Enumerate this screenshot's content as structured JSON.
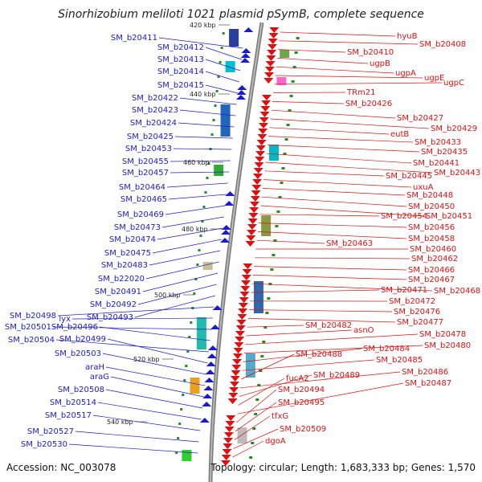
{
  "title": "Sinorhizobium meliloti 1021 plasmid pSymB, complete sequence",
  "footer": {
    "accession": "Accession: NC_003078",
    "topology": "Topology: circular; Length: 1,683,333 bp; Genes: 1,570"
  },
  "ticks": [
    "420 kbp",
    "440 kbp",
    "460 kbp",
    "480 kbp",
    "500 kbp",
    "520 kbp",
    "540 kbp"
  ],
  "colors": {
    "forward_genes": "#e01010",
    "reverse_genes": "#1a1ad0",
    "backbone": "#888888"
  },
  "left_labels": [
    "SM_b20411",
    "SM_b20412",
    "SM_b20413",
    "SM_b20414",
    "SM_b20415",
    "SM_b20422",
    "SM_b20423",
    "SM_b20424",
    "SM_b20425",
    "SM_b20453",
    "SM_b20455",
    "SM_b20457",
    "SM_b20464",
    "SM_b20465",
    "SM_b20469",
    "SM_b20473",
    "SM_b20474",
    "SM_b20475",
    "SM_b20483",
    "SM_b22020",
    "SM_b20491",
    "SM_b20492",
    "SM_b20493",
    "SM_b20498",
    "lyx",
    "SM_b20501",
    "SM_b20496",
    "SM_b20504",
    "SM_b20499",
    "SM_b20503",
    "araH",
    "araG",
    "SM_b20508",
    "SM_b20514",
    "SM_b20517",
    "SM_b20527",
    "SM_b20530"
  ],
  "right_labels": [
    "hyuB",
    "SM_b20408",
    "SM_b20410",
    "ugpB",
    "ugpA",
    "ugpE",
    "ugpC",
    "TRm21",
    "SM_b20426",
    "SM_b20427",
    "SM_b20429",
    "eutB",
    "SM_b20433",
    "SM_b20435",
    "SM_b20441",
    "SM_b20443",
    "SM_b20445",
    "uxuA",
    "SM_b20448",
    "SM_b20450",
    "SM_b20451",
    "SM_b20454",
    "SM_b20456",
    "SM_b20458",
    "SM_b20463",
    "SM_b20460",
    "SM_b20462",
    "SM_b20466",
    "SM_b20467",
    "SM_b20468",
    "SM_b20471",
    "SM_b20472",
    "SM_b20476",
    "SM_b20477",
    "SM_b20482",
    "asnO",
    "SM_b20478",
    "SM_b20480",
    "SM_b20484",
    "SM_b20485",
    "SM_b20488",
    "SM_b20486",
    "SM_b20489",
    "fucA2",
    "SM_b20487",
    "SM_b20494",
    "SM_b20495",
    "tfxG",
    "SM_b20509",
    "dgoA"
  ]
}
